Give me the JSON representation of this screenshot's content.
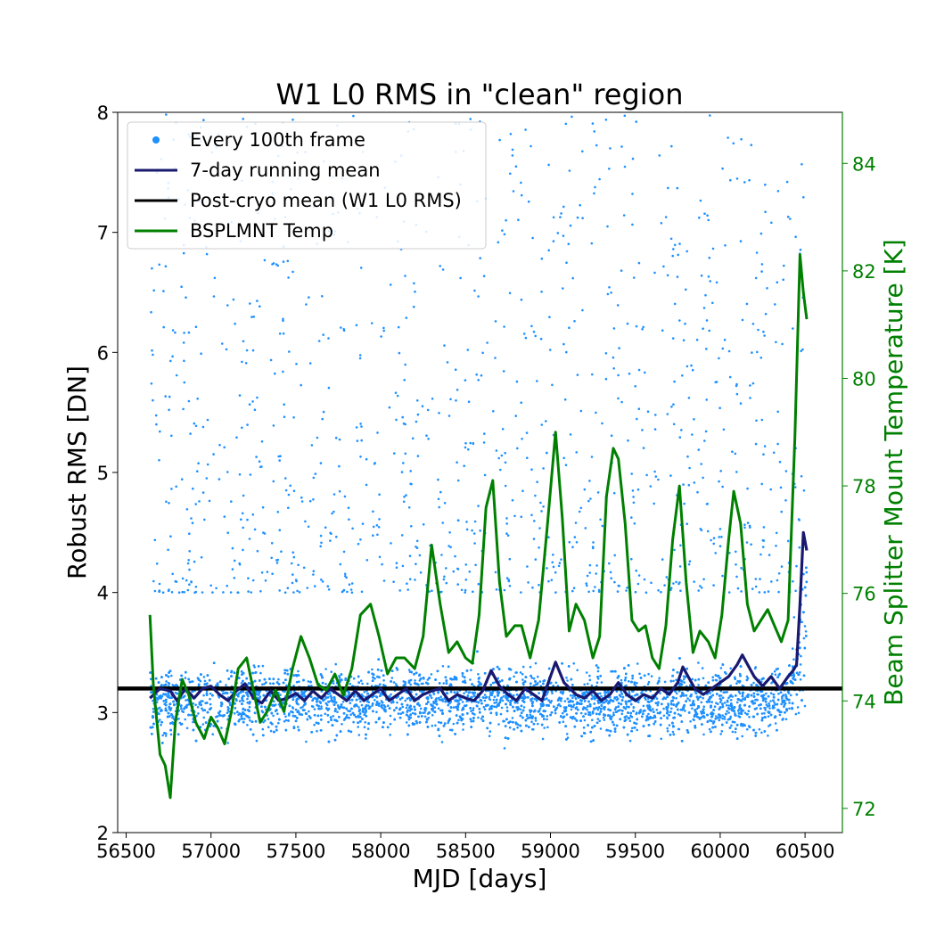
{
  "chart_data": {
    "type": "scatter",
    "title": "W1 L0 RMS in \"clean\" region",
    "xlabel": "MJD [days]",
    "ylabel": "Robust RMS [DN]",
    "y2label": "Beam Splitter Mount Temperature [K]",
    "xlim": [
      56450,
      60720
    ],
    "ylim": [
      2,
      8
    ],
    "y2lim": [
      71.55,
      84.95
    ],
    "xticks": [
      56500,
      57000,
      57500,
      58000,
      58500,
      59000,
      59500,
      60000,
      60500
    ],
    "yticks": [
      2,
      3,
      4,
      5,
      6,
      7,
      8
    ],
    "y2ticks": [
      72,
      74,
      76,
      78,
      80,
      82,
      84
    ],
    "grid": false,
    "legend_position": "top-left",
    "legend": [
      {
        "label": "Every 100th frame",
        "color": "#1e90ff",
        "marker": "dot"
      },
      {
        "label": "7-day running mean",
        "color": "#191970",
        "marker": "line"
      },
      {
        "label": "Post-cryo mean (W1 L0 RMS)",
        "color": "#000000",
        "marker": "line"
      },
      {
        "label": "BSPLMNT Temp",
        "color": "#008000",
        "marker": "line"
      }
    ],
    "scatter_cloud": {
      "name": "Every 100th frame",
      "x_range": [
        56640,
        60510
      ],
      "core_y_range": [
        2.5,
        3.9
      ],
      "outlier_y_max": 8.0,
      "color": "#1e90ff"
    },
    "hline": {
      "name": "Post-cryo mean (W1 L0 RMS)",
      "y": 3.2,
      "color": "#000000"
    },
    "series": [
      {
        "name": "7-day running mean",
        "axis": "left",
        "color": "#191970",
        "x": [
          56640,
          56700,
          56760,
          56800,
          56850,
          56900,
          56950,
          57000,
          57050,
          57100,
          57150,
          57200,
          57250,
          57300,
          57350,
          57400,
          57450,
          57500,
          57550,
          57600,
          57650,
          57700,
          57750,
          57800,
          57850,
          57900,
          57950,
          58000,
          58050,
          58100,
          58150,
          58200,
          58250,
          58300,
          58350,
          58400,
          58450,
          58500,
          58550,
          58600,
          58650,
          58700,
          58750,
          58800,
          58850,
          58900,
          58950,
          59000,
          59030,
          59080,
          59150,
          59200,
          59250,
          59300,
          59350,
          59400,
          59450,
          59500,
          59550,
          59600,
          59650,
          59700,
          59750,
          59780,
          59850,
          59900,
          59950,
          60000,
          60050,
          60100,
          60130,
          60200,
          60250,
          60300,
          60350,
          60400,
          60430,
          60450,
          60470,
          60490,
          60510
        ],
        "y": [
          3.12,
          3.2,
          3.18,
          3.1,
          3.2,
          3.12,
          3.2,
          3.22,
          3.15,
          3.1,
          3.18,
          3.24,
          3.12,
          3.08,
          3.18,
          3.1,
          3.12,
          3.16,
          3.1,
          3.18,
          3.12,
          3.2,
          3.15,
          3.1,
          3.18,
          3.1,
          3.15,
          3.2,
          3.1,
          3.15,
          3.2,
          3.1,
          3.15,
          3.18,
          3.2,
          3.1,
          3.15,
          3.12,
          3.1,
          3.18,
          3.35,
          3.22,
          3.15,
          3.1,
          3.2,
          3.15,
          3.1,
          3.3,
          3.42,
          3.25,
          3.15,
          3.12,
          3.18,
          3.1,
          3.15,
          3.25,
          3.15,
          3.1,
          3.15,
          3.12,
          3.2,
          3.15,
          3.25,
          3.38,
          3.2,
          3.15,
          3.2,
          3.25,
          3.3,
          3.4,
          3.48,
          3.3,
          3.22,
          3.3,
          3.2,
          3.3,
          3.35,
          3.4,
          3.9,
          4.5,
          4.35
        ]
      },
      {
        "name": "BSPLMNT Temp",
        "axis": "right",
        "color": "#008000",
        "x": [
          56640,
          56660,
          56700,
          56730,
          56760,
          56790,
          56830,
          56870,
          56910,
          56960,
          57000,
          57040,
          57080,
          57120,
          57160,
          57210,
          57250,
          57290,
          57330,
          57380,
          57430,
          57480,
          57530,
          57580,
          57630,
          57680,
          57730,
          57780,
          57830,
          57880,
          57940,
          57990,
          58040,
          58090,
          58140,
          58200,
          58250,
          58300,
          58350,
          58400,
          58450,
          58500,
          58540,
          58580,
          58620,
          58660,
          58700,
          58740,
          58790,
          58830,
          58880,
          58930,
          58980,
          59030,
          59070,
          59110,
          59150,
          59200,
          59250,
          59290,
          59330,
          59370,
          59400,
          59440,
          59480,
          59520,
          59560,
          59600,
          59640,
          59680,
          59720,
          59760,
          59800,
          59840,
          59880,
          59930,
          59970,
          60010,
          60050,
          60080,
          60120,
          60160,
          60200,
          60240,
          60280,
          60320,
          60360,
          60400,
          60440,
          60470,
          60490,
          60510
        ],
        "y": [
          75.6,
          74.3,
          73.0,
          72.8,
          72.2,
          73.6,
          74.4,
          74.1,
          73.6,
          73.3,
          73.7,
          73.5,
          73.2,
          73.8,
          74.6,
          74.8,
          74.2,
          73.6,
          73.8,
          74.2,
          73.8,
          74.6,
          75.2,
          74.8,
          74.3,
          74.2,
          74.5,
          74.1,
          74.6,
          75.6,
          75.8,
          75.2,
          74.5,
          74.8,
          74.8,
          74.6,
          75.2,
          76.9,
          75.8,
          74.9,
          75.1,
          74.8,
          74.7,
          75.6,
          77.6,
          78.1,
          76.2,
          75.2,
          75.4,
          75.4,
          74.8,
          75.5,
          77.2,
          79.0,
          77.4,
          75.3,
          75.8,
          75.5,
          74.8,
          75.2,
          77.8,
          78.7,
          78.5,
          77.3,
          75.5,
          75.3,
          75.4,
          74.8,
          74.6,
          75.4,
          77.0,
          78.0,
          76.2,
          74.9,
          75.3,
          75.1,
          74.8,
          75.6,
          77.0,
          77.9,
          77.3,
          75.8,
          75.3,
          75.5,
          75.7,
          75.4,
          75.1,
          75.5,
          78.9,
          82.3,
          81.6,
          81.1
        ]
      }
    ]
  }
}
